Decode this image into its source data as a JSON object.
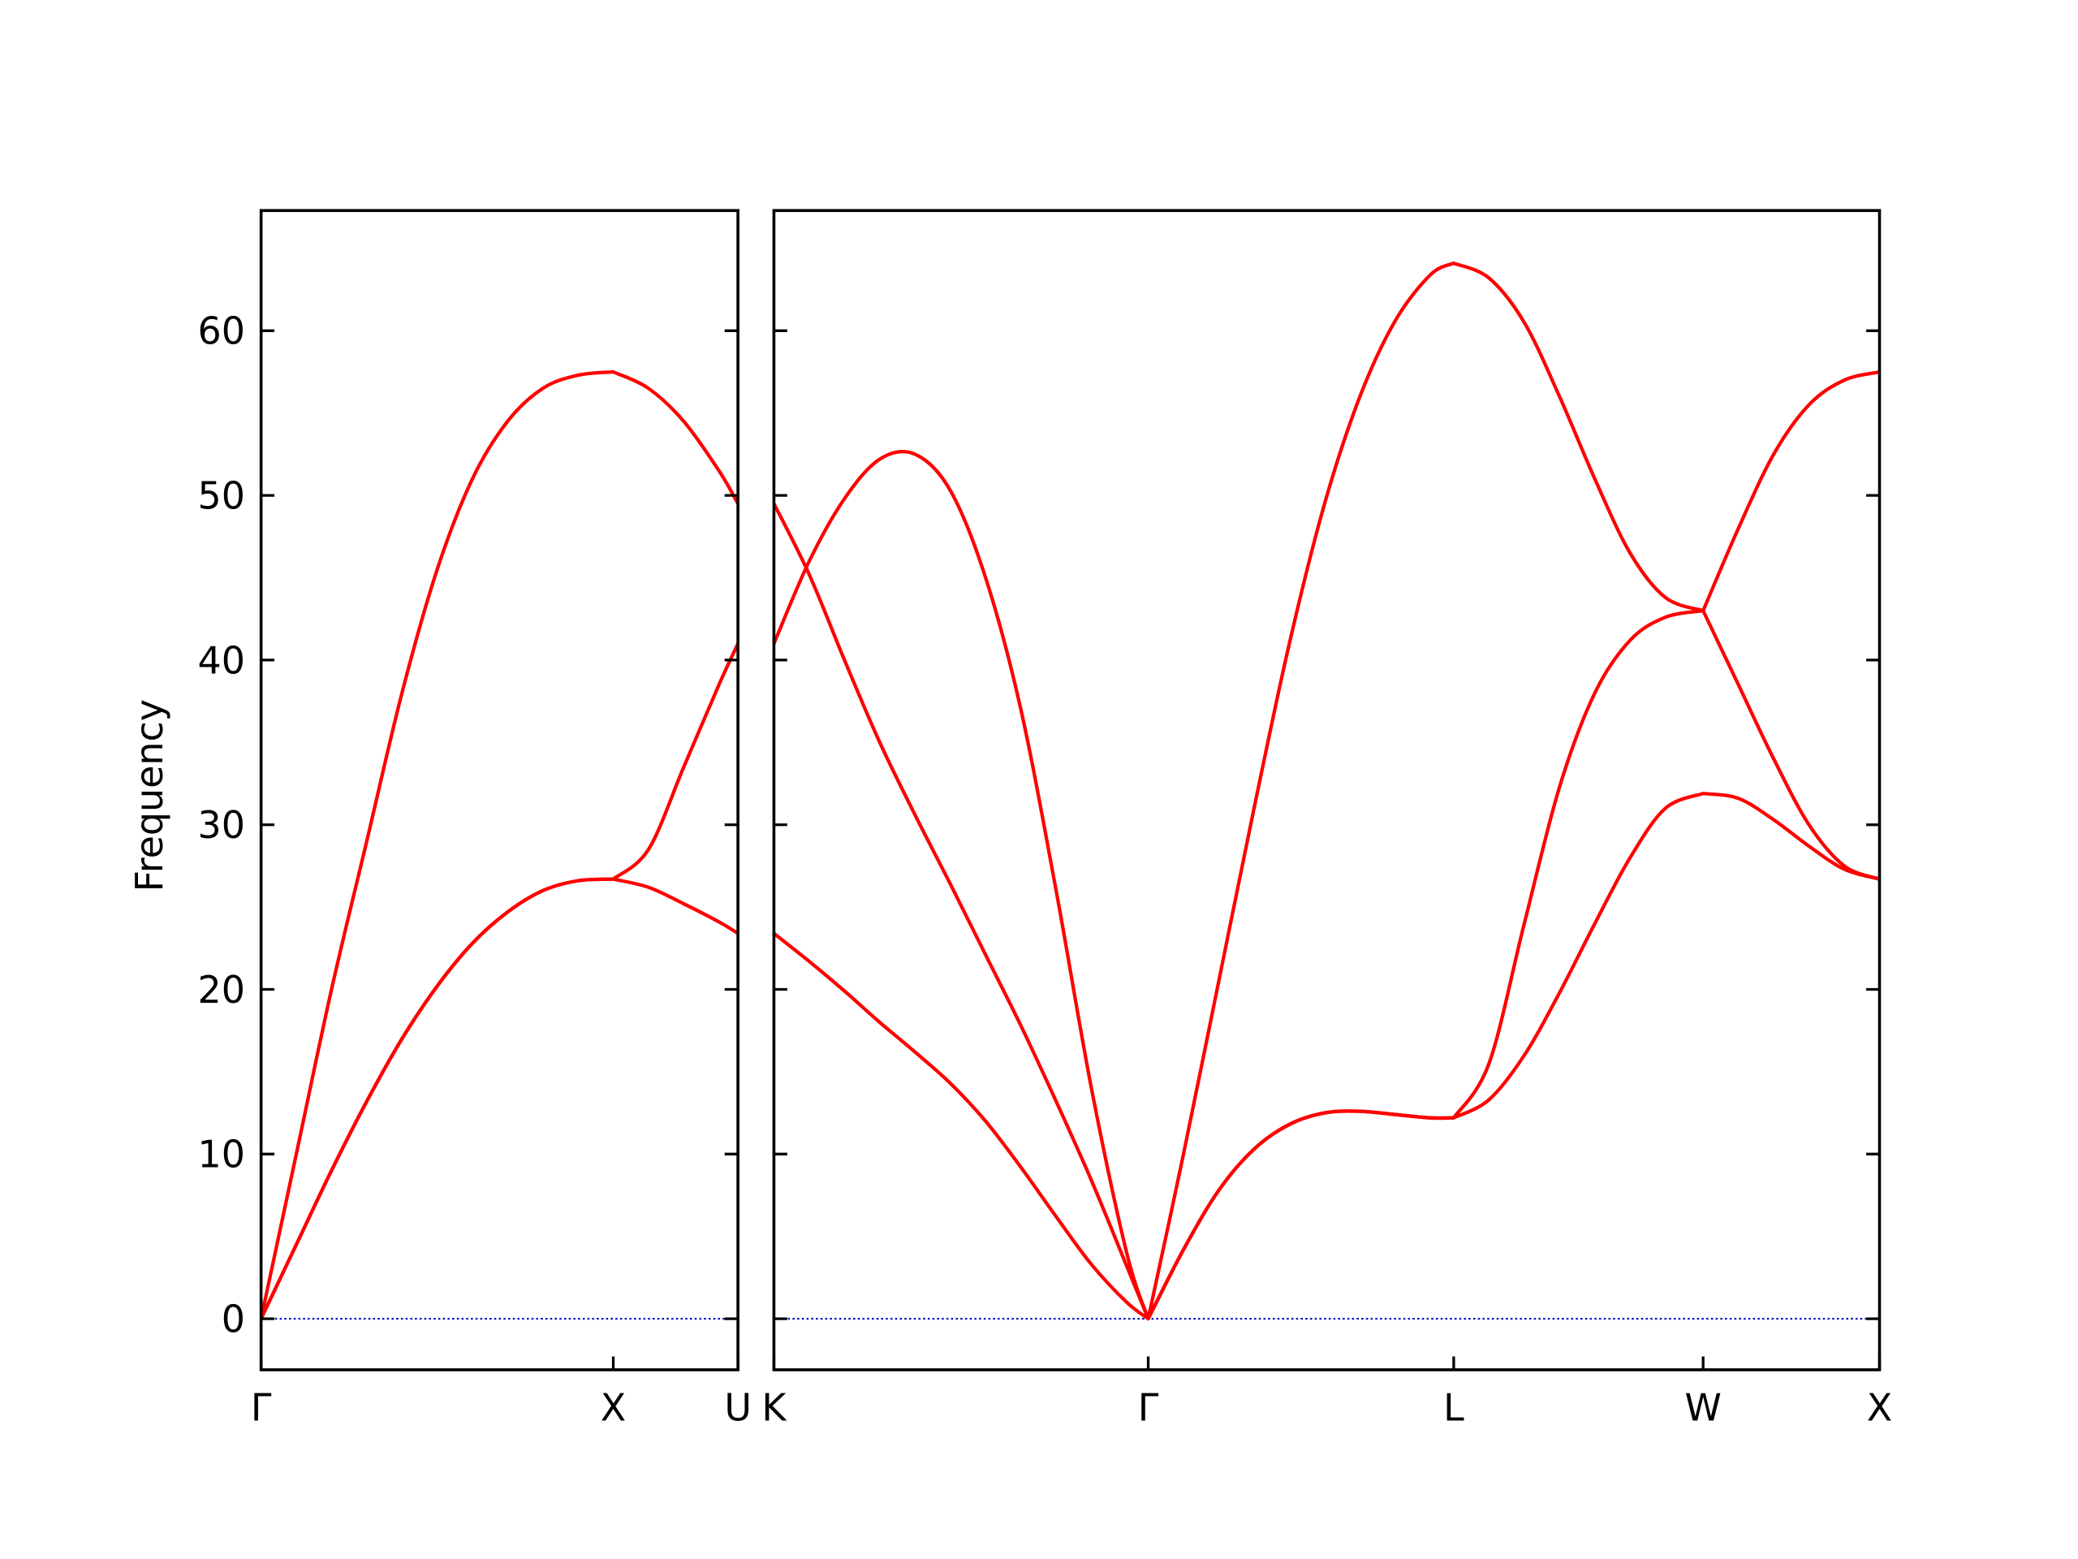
{
  "chart_data": [
    {
      "type": "line",
      "y_label": "Frequency",
      "ytick_labels": true,
      "xlim": [
        0,
        1.354
      ],
      "ylim": [
        -3.1,
        67.3
      ],
      "xticks": [
        {
          "value": 0,
          "label": "Γ"
        },
        {
          "value": 1,
          "label": "X"
        },
        {
          "value": 1.354,
          "label": "U"
        }
      ],
      "yticks": [
        0,
        10,
        20,
        30,
        40,
        50,
        60
      ],
      "hline": {
        "value": 0,
        "color": "#0000cc"
      },
      "x": [
        0,
        0.1,
        0.2,
        0.3,
        0.4,
        0.5,
        0.6,
        0.7,
        0.8,
        0.9,
        1,
        1.1,
        1.2,
        1.3,
        1.354
      ],
      "series": [
        {
          "color": "#ff0000",
          "values": [
            0,
            4.5,
            9,
            13.2,
            17,
            20.2,
            22.8,
            24.7,
            26,
            26.6,
            26.7,
            26.2,
            25.2,
            24.1,
            23.4
          ]
        },
        {
          "color": "#ff0000",
          "values": [
            0,
            4.5,
            9,
            13.2,
            17,
            20.2,
            22.8,
            24.7,
            26,
            26.6,
            26.7,
            28.5,
            33.5,
            38.5,
            41
          ]
        },
        {
          "color": "#ff0000",
          "values": [
            0,
            10,
            20,
            29,
            38,
            45.5,
            51,
            54.5,
            56.5,
            57.3,
            57.5,
            56.5,
            54.5,
            51.5,
            49.5
          ]
        }
      ]
    },
    {
      "type": "line",
      "ytick_labels": false,
      "xlim": [
        0,
        3.134
      ],
      "ylim": [
        -3.1,
        67.3
      ],
      "xticks": [
        {
          "value": 0,
          "label": "K"
        },
        {
          "value": 1.061,
          "label": "Γ"
        },
        {
          "value": 1.927,
          "label": "L"
        },
        {
          "value": 2.634,
          "label": "W"
        },
        {
          "value": 3.134,
          "label": "X"
        }
      ],
      "yticks": [
        0,
        10,
        20,
        30,
        40,
        50,
        60
      ],
      "hline": {
        "value": 0,
        "color": "#0000cc"
      },
      "x": [
        0,
        0.1,
        0.2,
        0.3,
        0.4,
        0.5,
        0.6,
        0.7,
        0.8,
        0.9,
        1,
        1.061,
        1.161,
        1.261,
        1.361,
        1.461,
        1.561,
        1.661,
        1.761,
        1.861,
        1.927,
        2.027,
        2.127,
        2.227,
        2.327,
        2.427,
        2.527,
        2.634,
        2.734,
        2.834,
        2.934,
        3.034,
        3.134
      ],
      "series": [
        {
          "color": "#ff0000",
          "values": [
            23.4,
            21.7,
            19.9,
            18,
            16.2,
            14.3,
            12,
            9.2,
            6.2,
            3.3,
            1,
            0,
            4.2,
            7.8,
            10.3,
            11.8,
            12.5,
            12.6,
            12.4,
            12.2,
            12.2,
            13.3,
            16,
            19.8,
            24,
            28,
            31,
            31.9,
            31.6,
            30.3,
            28.7,
            27.3,
            26.7
          ]
        },
        {
          "color": "#ff0000",
          "values": [
            49.5,
            45.2,
            40,
            35,
            30.6,
            26.4,
            22.1,
            17.8,
            13.2,
            8.4,
            3.2,
            0,
            4.2,
            7.8,
            10.3,
            11.8,
            12.5,
            12.6,
            12.4,
            12.2,
            12.2,
            15.5,
            24,
            32.3,
            38,
            41.2,
            42.6,
            43,
            38.5,
            34,
            30,
            27.5,
            26.7
          ]
        },
        {
          "color": "#ff0000",
          "values": [
            41,
            46,
            49.8,
            52.2,
            52.5,
            50.3,
            45,
            37,
            26,
            14,
            4,
            0,
            10,
            20.5,
            31,
            41,
            49.5,
            56,
            60.6,
            63.4,
            64.1,
            63.2,
            60.5,
            56,
            51,
            46.5,
            43.8,
            43,
            48,
            52.5,
            55.5,
            57,
            57.5
          ]
        }
      ]
    }
  ]
}
